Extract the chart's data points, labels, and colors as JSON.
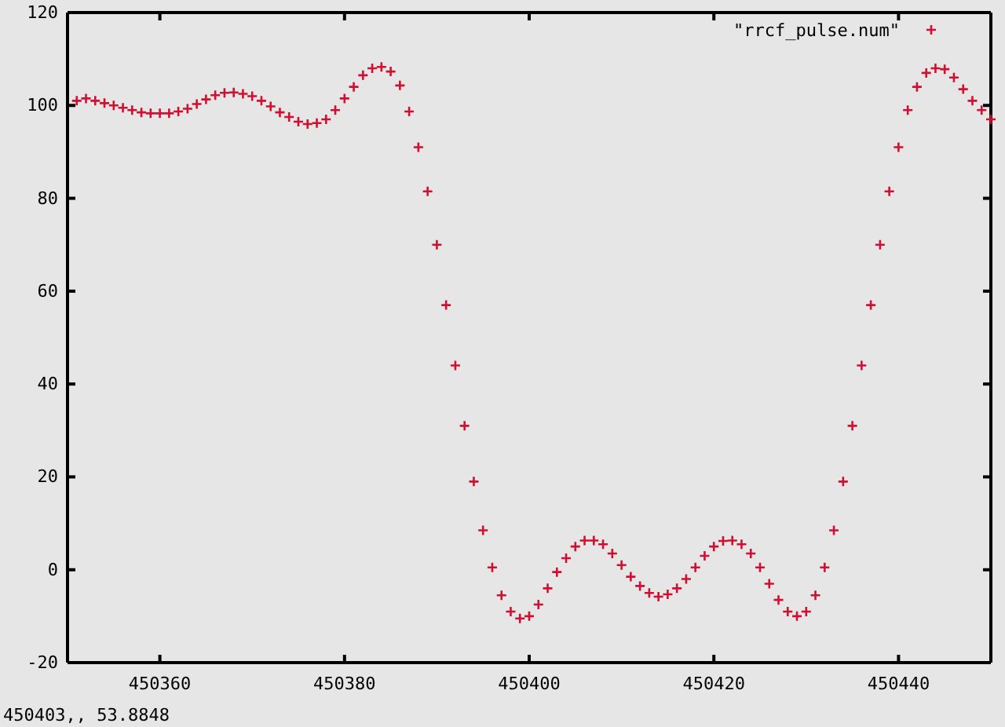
{
  "chart_data": {
    "type": "scatter",
    "x": [
      450351,
      450352,
      450353,
      450354,
      450355,
      450356,
      450357,
      450358,
      450359,
      450360,
      450361,
      450362,
      450363,
      450364,
      450365,
      450366,
      450367,
      450368,
      450369,
      450370,
      450371,
      450372,
      450373,
      450374,
      450375,
      450376,
      450377,
      450378,
      450379,
      450380,
      450381,
      450382,
      450383,
      450384,
      450385,
      450386,
      450387,
      450388,
      450389,
      450390,
      450391,
      450392,
      450393,
      450394,
      450395,
      450396,
      450397,
      450398,
      450399,
      450400,
      450401,
      450402,
      450403,
      450404,
      450405,
      450406,
      450407,
      450408,
      450409,
      450410,
      450411,
      450412,
      450413,
      450414,
      450415,
      450416,
      450417,
      450418,
      450419,
      450420,
      450421,
      450422,
      450423,
      450424,
      450425,
      450426,
      450427,
      450428,
      450429,
      450430,
      450431,
      450432,
      450433,
      450434,
      450435,
      450436,
      450437,
      450438,
      450439,
      450440,
      450441,
      450442,
      450443,
      450444,
      450445,
      450446,
      450447,
      450448,
      450449,
      450450
    ],
    "series": [
      {
        "name": "\"rrcf_pulse.num\"",
        "color": "#d01030",
        "values": [
          101,
          101.5,
          101,
          100.5,
          100,
          99.5,
          99,
          98.5,
          98.3,
          98.3,
          98.3,
          98.7,
          99.3,
          100.3,
          101.3,
          102.2,
          102.7,
          102.8,
          102.5,
          102,
          101,
          99.8,
          98.5,
          97.5,
          96.5,
          96,
          96.2,
          97,
          99,
          101.5,
          104,
          106.5,
          108,
          108.3,
          107.3,
          104.3,
          98.7,
          91,
          81.5,
          70,
          57,
          44,
          31,
          19,
          8.5,
          0.5,
          -5.5,
          -9,
          -10.5,
          -10,
          -7.5,
          -4,
          -0.5,
          2.5,
          5,
          6.3,
          6.3,
          5.5,
          3.5,
          1,
          -1.5,
          -3.5,
          -5,
          -5.8,
          -5.3,
          -4,
          -2,
          0.5,
          3,
          5,
          6.2,
          6.3,
          5.5,
          3.5,
          0.5,
          -3,
          -6.5,
          -9,
          -10,
          -9,
          -5.5,
          0.5,
          8.5,
          19,
          31,
          44,
          57,
          70,
          81.5,
          91,
          99,
          104,
          107,
          108,
          107.8,
          106,
          103.5,
          101,
          99,
          97
        ]
      }
    ],
    "xlim": [
      450350,
      450450
    ],
    "xticks": [
      450360,
      450380,
      450400,
      450420,
      450440
    ],
    "ylim": [
      -20,
      120
    ],
    "yticks": [
      -20,
      0,
      20,
      40,
      60,
      80,
      100,
      120
    ],
    "marker": "cross",
    "legend": "top right",
    "grid": false,
    "annotations": [
      "450403,, 53.8848"
    ]
  }
}
